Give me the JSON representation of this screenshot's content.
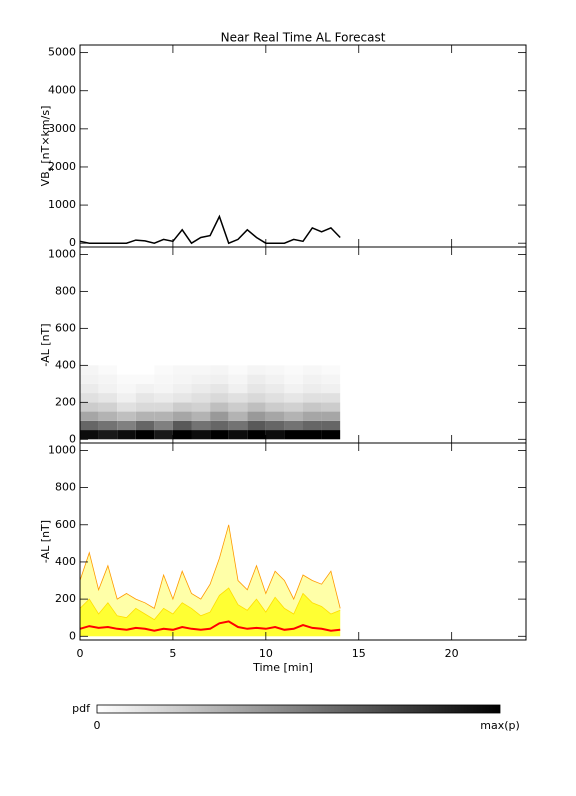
{
  "chart_data": [
    {
      "type": "line",
      "title": "Near Real Time AL Forecast",
      "ylabel": {
        "main": "VB",
        "sub": "s",
        "unit": " [nT×km/s]"
      },
      "xlim": [
        0,
        24
      ],
      "xticks": [
        0,
        5,
        10,
        15,
        20
      ],
      "ylim": [
        -100,
        5200
      ],
      "yticks": [
        0,
        1000,
        2000,
        3000,
        4000,
        5000
      ],
      "color": "#000000",
      "x": [
        0,
        0.5,
        1,
        1.5,
        2,
        2.5,
        3,
        3.5,
        4,
        4.5,
        5,
        5.5,
        6,
        6.5,
        7,
        7.5,
        8,
        8.5,
        9,
        9.5,
        10,
        10.5,
        11,
        11.5,
        12,
        12.5,
        13,
        13.5,
        14
      ],
      "values": [
        50,
        0,
        0,
        0,
        0,
        0,
        80,
        60,
        0,
        100,
        50,
        350,
        0,
        150,
        200,
        700,
        0,
        100,
        350,
        150,
        0,
        0,
        0,
        100,
        50,
        400,
        300,
        400,
        150
      ]
    },
    {
      "type": "heatmap",
      "ylabel": "-AL [nT]",
      "xlim": [
        0,
        24
      ],
      "xticks": [
        0,
        5,
        10,
        15,
        20
      ],
      "ylim": [
        -20,
        1040
      ],
      "yticks": [
        0,
        200,
        400,
        600,
        800,
        1000
      ],
      "x_bins": [
        0,
        1,
        2,
        3,
        4,
        5,
        6,
        7,
        8,
        9,
        10,
        11,
        12,
        13,
        14
      ],
      "y_bins": [
        0,
        50,
        100,
        150,
        200,
        250,
        300,
        350,
        400
      ],
      "values": [
        [
          0.95,
          0.6,
          0.35,
          0.2,
          0.12,
          0.08,
          0.05,
          0.04
        ],
        [
          0.9,
          0.55,
          0.3,
          0.18,
          0.1,
          0.05,
          0.04,
          0.02
        ],
        [
          0.95,
          0.5,
          0.25,
          0.12,
          0.06,
          0.03,
          0.02,
          0
        ],
        [
          1,
          0.6,
          0.3,
          0.15,
          0.1,
          0.05,
          0.02,
          0
        ],
        [
          0.9,
          0.5,
          0.3,
          0.15,
          0.08,
          0.04,
          0.03,
          0.02
        ],
        [
          1,
          0.65,
          0.35,
          0.2,
          0.1,
          0.06,
          0.04,
          0.03
        ],
        [
          0.95,
          0.55,
          0.3,
          0.18,
          0.12,
          0.08,
          0.05,
          0.03
        ],
        [
          1,
          0.6,
          0.4,
          0.25,
          0.15,
          0.1,
          0.06,
          0.04
        ],
        [
          0.95,
          0.55,
          0.3,
          0.2,
          0.12,
          0.06,
          0.04,
          0.02
        ],
        [
          1,
          0.65,
          0.4,
          0.25,
          0.15,
          0.1,
          0.07,
          0.04
        ],
        [
          0.95,
          0.6,
          0.35,
          0.2,
          0.12,
          0.08,
          0.05,
          0.03
        ],
        [
          1,
          0.55,
          0.3,
          0.18,
          0.1,
          0.05,
          0.03,
          0.02
        ],
        [
          1,
          0.6,
          0.35,
          0.22,
          0.12,
          0.07,
          0.05,
          0.03
        ],
        [
          1,
          0.6,
          0.35,
          0.2,
          0.12,
          0.06,
          0.04,
          0.02
        ]
      ]
    },
    {
      "type": "area",
      "ylabel": "-AL [nT]",
      "xlabel": "Time [min]",
      "xlim": [
        0,
        24
      ],
      "xticks": [
        0,
        5,
        10,
        15,
        20
      ],
      "ylim": [
        -20,
        1040
      ],
      "yticks": [
        0,
        200,
        400,
        600,
        800,
        1000
      ],
      "x": [
        0,
        0.5,
        1,
        1.5,
        2,
        2.5,
        3,
        3.5,
        4,
        4.5,
        5,
        5.5,
        6,
        6.5,
        7,
        7.5,
        8,
        8.5,
        9,
        9.5,
        10,
        10.5,
        11,
        11.5,
        12,
        12.5,
        13,
        13.5,
        14
      ],
      "series": [
        {
          "color": "#ff9900",
          "fill": "#ffffa8",
          "values": [
            300,
            450,
            250,
            380,
            200,
            230,
            200,
            180,
            150,
            330,
            200,
            350,
            230,
            200,
            280,
            420,
            600,
            300,
            250,
            380,
            230,
            350,
            300,
            200,
            330,
            300,
            280,
            350,
            150
          ]
        },
        {
          "color": "#ffdd00",
          "fill": "#ffff33",
          "values": [
            150,
            200,
            120,
            180,
            110,
            100,
            150,
            120,
            90,
            150,
            120,
            180,
            150,
            110,
            130,
            220,
            260,
            170,
            140,
            200,
            130,
            210,
            150,
            120,
            230,
            180,
            160,
            120,
            140
          ]
        },
        {
          "color": "#ff0000",
          "values": [
            40,
            55,
            45,
            50,
            40,
            35,
            45,
            40,
            30,
            40,
            35,
            50,
            40,
            35,
            40,
            70,
            80,
            50,
            40,
            45,
            40,
            50,
            35,
            40,
            60,
            45,
            40,
            30,
            35
          ]
        }
      ]
    }
  ],
  "colorbar": {
    "label": "pdf",
    "min_label": "0",
    "max_label": "max(p)"
  }
}
